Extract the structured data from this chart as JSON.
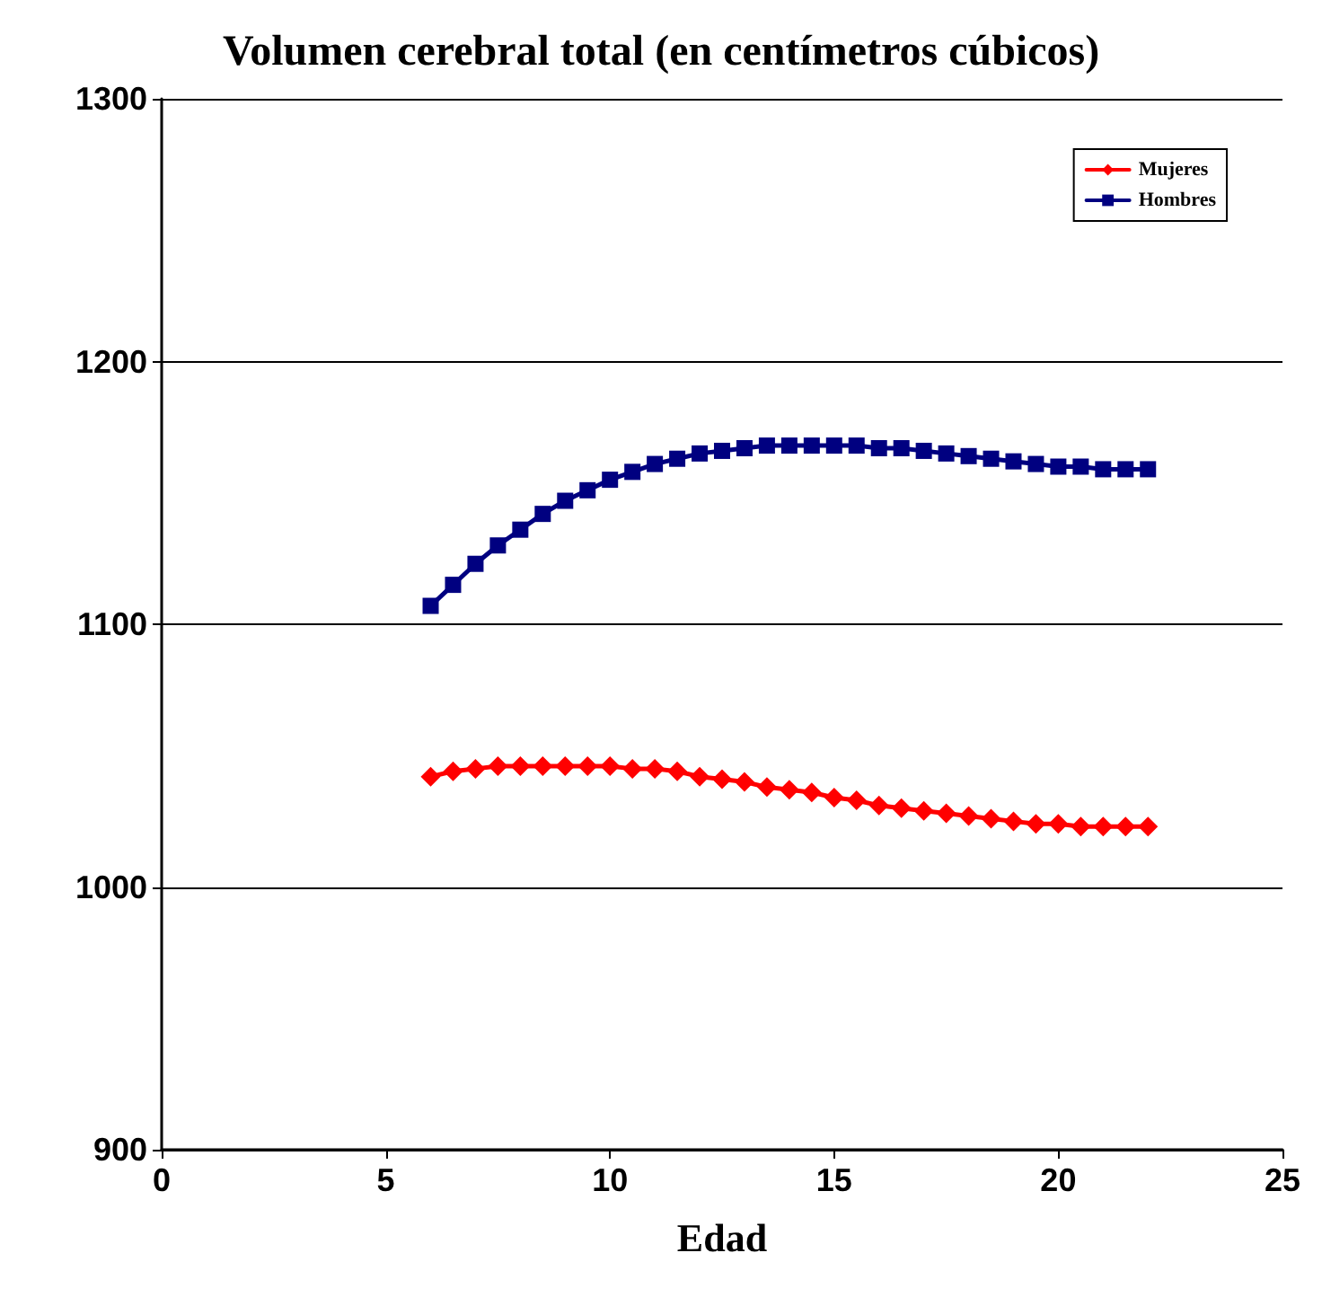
{
  "chart_data": {
    "type": "line",
    "title": "Volumen cerebral total (en centímetros cúbicos)",
    "xlabel": "Edad",
    "x": [
      6,
      6.5,
      7,
      7.5,
      8,
      8.5,
      9,
      9.5,
      10,
      10.5,
      11,
      11.5,
      12,
      12.5,
      13,
      13.5,
      14,
      14.5,
      15,
      15.5,
      16,
      16.5,
      17,
      17.5,
      18,
      18.5,
      19,
      19.5,
      20,
      20.5,
      21,
      21.5,
      22
    ],
    "series": [
      {
        "name": "Mujeres",
        "color": "#ff0000",
        "marker": "diamond",
        "values": [
          1042,
          1044,
          1045,
          1046,
          1046,
          1046,
          1046,
          1046,
          1046,
          1045,
          1045,
          1044,
          1042,
          1041,
          1040,
          1038,
          1037,
          1036,
          1034,
          1033,
          1031,
          1030,
          1029,
          1028,
          1027,
          1026,
          1025,
          1024,
          1024,
          1023,
          1023,
          1023,
          1023
        ]
      },
      {
        "name": "Hombres",
        "color": "#000080",
        "marker": "square",
        "values": [
          1107,
          1115,
          1123,
          1130,
          1136,
          1142,
          1147,
          1151,
          1155,
          1158,
          1161,
          1163,
          1165,
          1166,
          1167,
          1168,
          1168,
          1168,
          1168,
          1168,
          1167,
          1167,
          1166,
          1165,
          1164,
          1163,
          1162,
          1161,
          1160,
          1160,
          1159,
          1159,
          1159
        ]
      }
    ],
    "xlim": [
      0,
      25
    ],
    "xticks": [
      0,
      5,
      10,
      15,
      20,
      25
    ],
    "ylim": [
      900,
      1300
    ],
    "yticks": [
      900,
      1000,
      1100,
      1200,
      1300
    ],
    "grid": "y",
    "legend": "top right",
    "line_style": "solid"
  }
}
